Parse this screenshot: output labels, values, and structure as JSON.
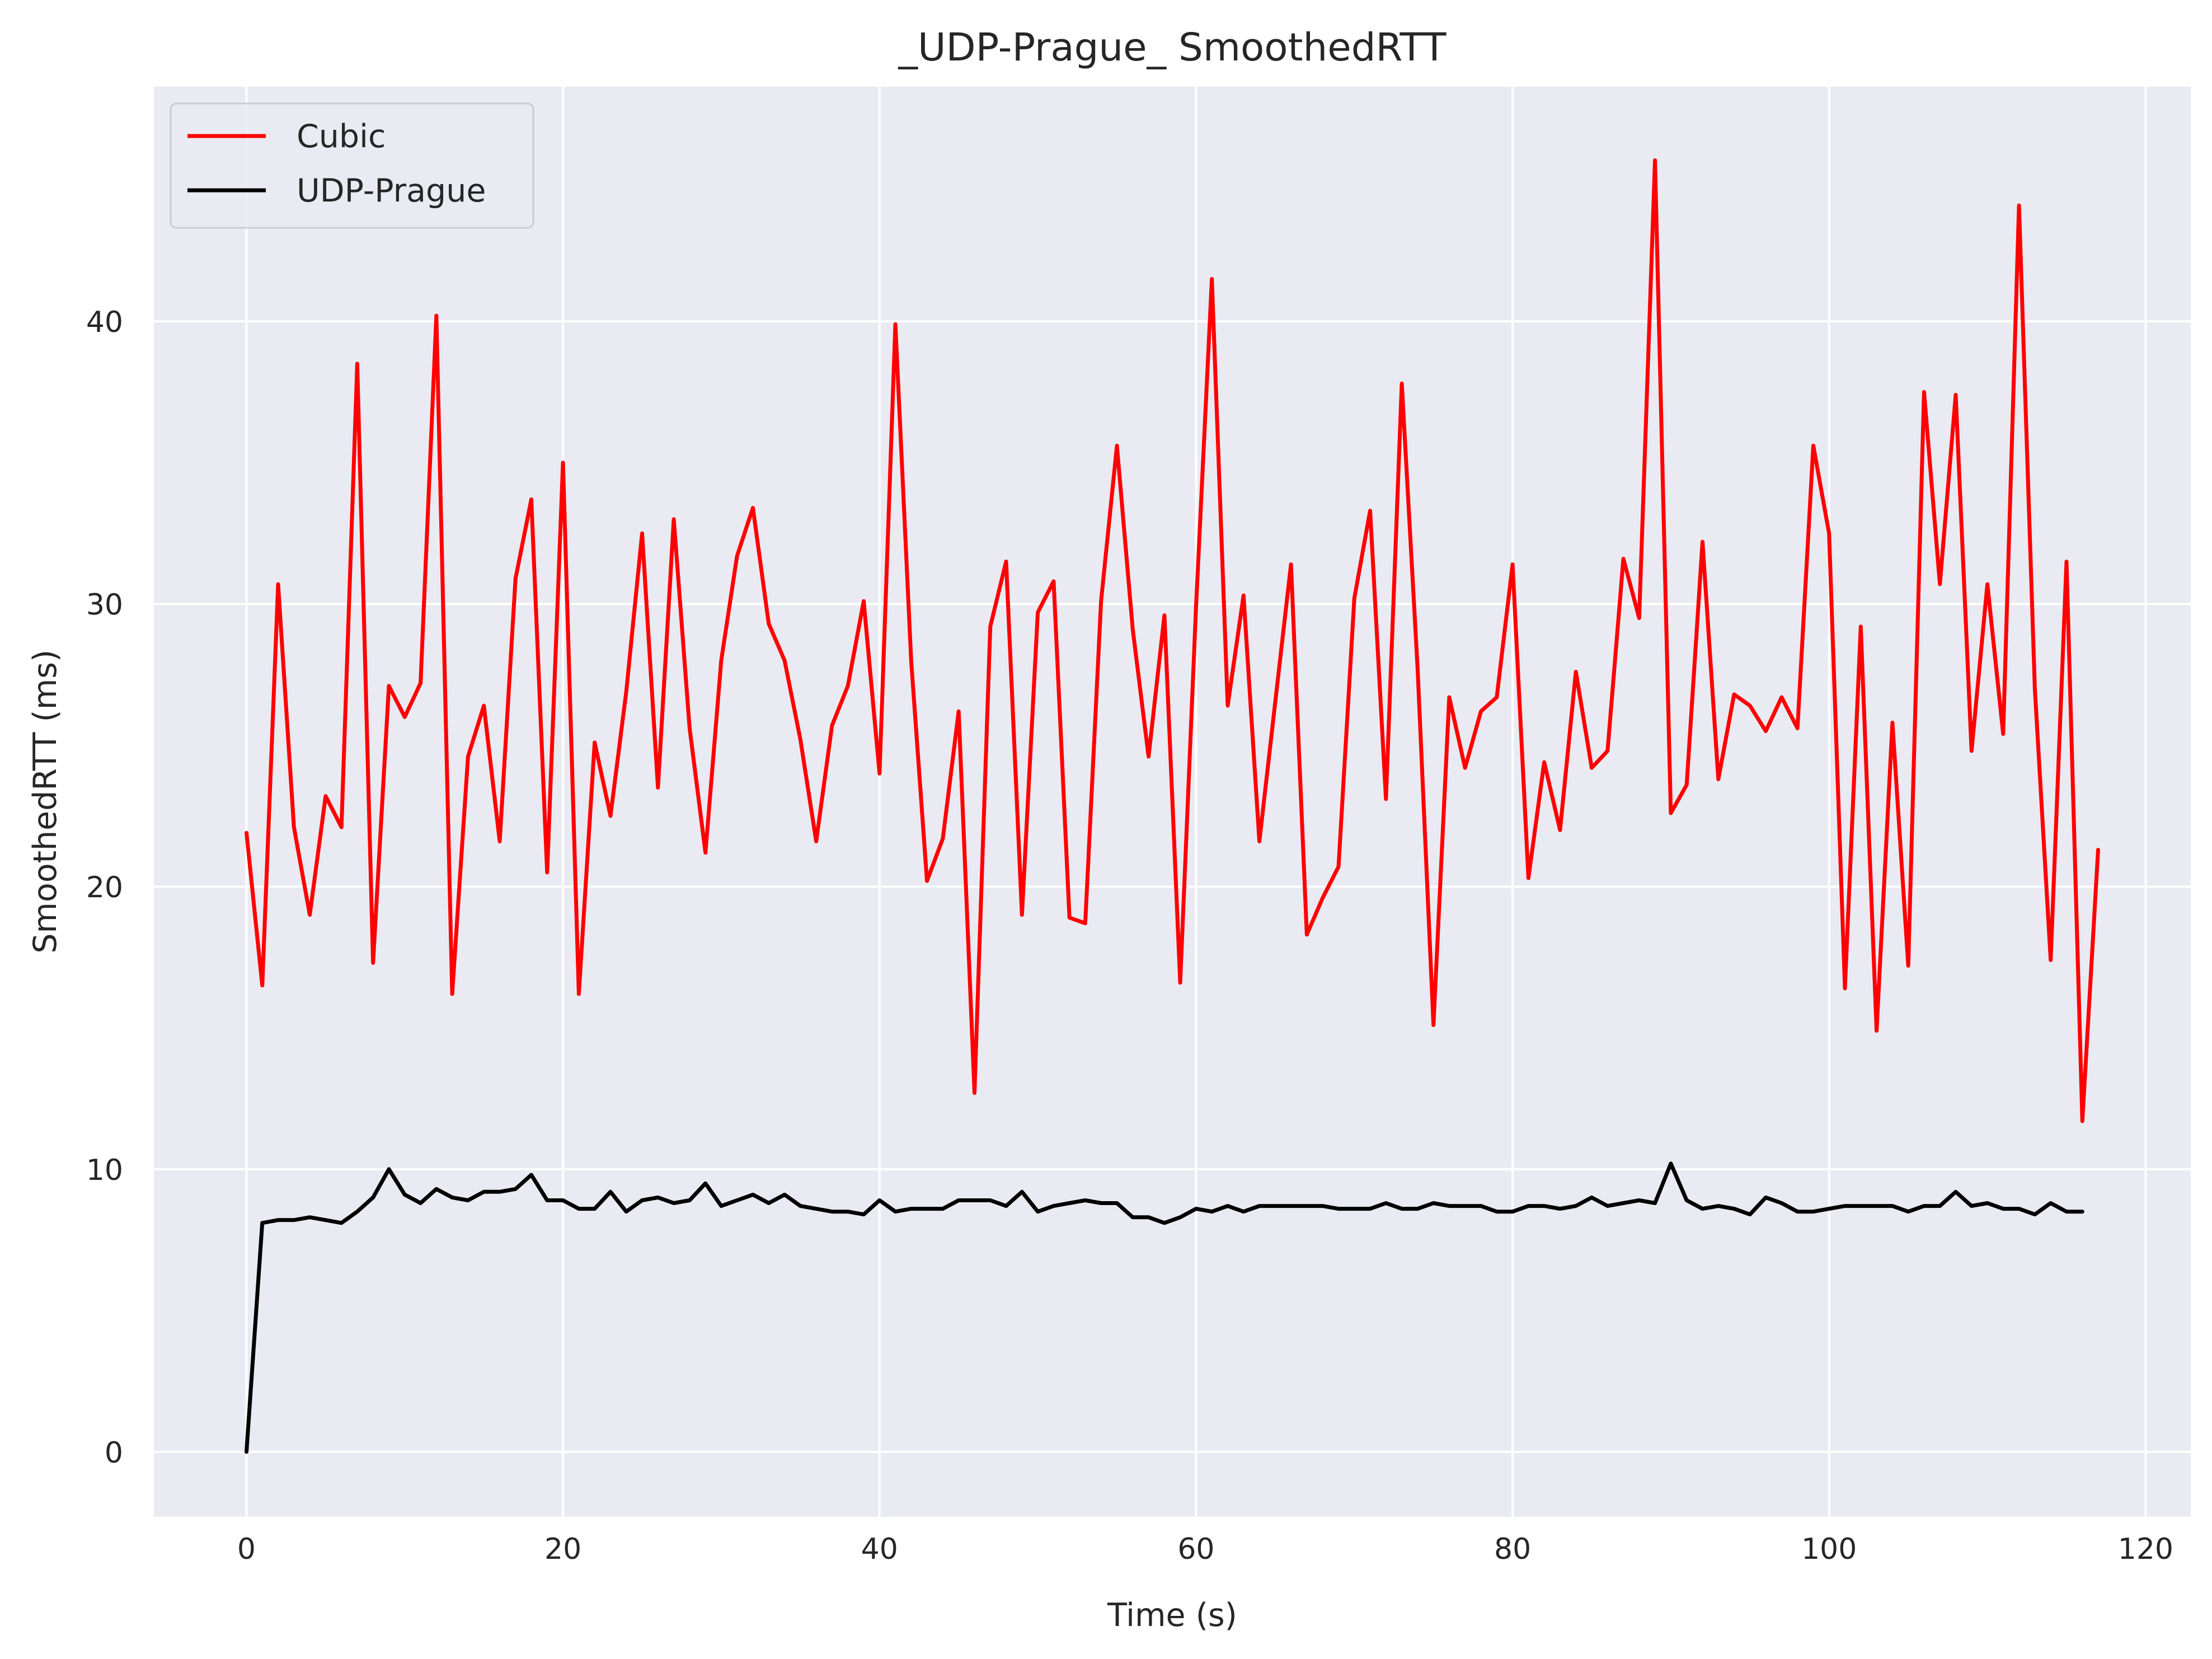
{
  "chart_data": {
    "type": "line",
    "title": "_UDP-Prague_ SmoothedRTT",
    "xlabel": "Time (s)",
    "ylabel": "SmoothedRTT (ms)",
    "xlim": [
      -5.85,
      122.85
    ],
    "ylim": [
      -2.3,
      48.3
    ],
    "xticks": [
      0,
      20,
      40,
      60,
      80,
      100,
      120
    ],
    "xtick_labels": [
      "0",
      "20",
      "40",
      "60",
      "80",
      "100",
      "120"
    ],
    "yticks": [
      0,
      10,
      20,
      30,
      40
    ],
    "ytick_labels": [
      "0",
      "10",
      "20",
      "30",
      "40"
    ],
    "grid": true,
    "legend_position": "top-left",
    "series": [
      {
        "name": "Cubic",
        "color": "#ff0000",
        "x_start": 0,
        "x_step": 1,
        "values": [
          21.9,
          16.5,
          30.7,
          22.1,
          19.0,
          23.2,
          22.1,
          38.5,
          17.3,
          27.1,
          26.0,
          27.2,
          40.2,
          16.2,
          24.6,
          26.4,
          21.6,
          30.9,
          33.7,
          20.5,
          35.0,
          16.2,
          25.1,
          22.5,
          26.9,
          32.5,
          23.5,
          33.0,
          25.6,
          21.2,
          28.0,
          31.7,
          33.4,
          29.3,
          28.0,
          25.2,
          21.6,
          25.7,
          27.1,
          30.1,
          24.0,
          39.9,
          28.0,
          20.2,
          21.7,
          26.2,
          12.7,
          29.2,
          31.5,
          19.0,
          29.7,
          30.8,
          18.9,
          18.7,
          30.1,
          35.6,
          29.1,
          24.6,
          29.6,
          16.6,
          29.9,
          41.5,
          26.4,
          30.3,
          21.6,
          26.5,
          31.4,
          18.3,
          19.6,
          20.7,
          30.2,
          33.3,
          23.1,
          37.8,
          27.7,
          15.1,
          26.7,
          24.2,
          26.2,
          26.7,
          31.4,
          20.3,
          24.4,
          22.0,
          27.6,
          24.2,
          24.8,
          31.6,
          29.5,
          45.7,
          22.6,
          23.6,
          32.2,
          23.8,
          26.8,
          26.4,
          25.5,
          26.7,
          25.6,
          35.6,
          32.5,
          16.4,
          29.2,
          14.9,
          25.8,
          17.2,
          37.5,
          30.7,
          37.4,
          24.8,
          30.7,
          25.4,
          44.1,
          27.0,
          17.4,
          31.5,
          11.7,
          21.3
        ]
      },
      {
        "name": "UDP-Prague",
        "color": "#000000",
        "x_start": 0,
        "x_step": 1,
        "values": [
          0.0,
          8.1,
          8.2,
          8.2,
          8.3,
          8.2,
          8.1,
          8.5,
          9.0,
          10.0,
          9.1,
          8.8,
          9.3,
          9.0,
          8.9,
          9.2,
          9.2,
          9.3,
          9.8,
          8.9,
          8.9,
          8.6,
          8.6,
          9.2,
          8.5,
          8.9,
          9.0,
          8.8,
          8.9,
          9.5,
          8.7,
          8.9,
          9.1,
          8.8,
          9.1,
          8.7,
          8.6,
          8.5,
          8.5,
          8.4,
          8.9,
          8.5,
          8.6,
          8.6,
          8.6,
          8.9,
          8.9,
          8.9,
          8.7,
          9.2,
          8.5,
          8.7,
          8.8,
          8.9,
          8.8,
          8.8,
          8.3,
          8.3,
          8.1,
          8.3,
          8.6,
          8.5,
          8.7,
          8.5,
          8.7,
          8.7,
          8.7,
          8.7,
          8.7,
          8.6,
          8.6,
          8.6,
          8.8,
          8.6,
          8.6,
          8.8,
          8.7,
          8.7,
          8.7,
          8.5,
          8.5,
          8.7,
          8.7,
          8.6,
          8.7,
          9.0,
          8.7,
          8.8,
          8.9,
          8.8,
          10.2,
          8.9,
          8.6,
          8.7,
          8.6,
          8.4,
          9.0,
          8.8,
          8.5,
          8.5,
          8.6,
          8.7,
          8.7,
          8.7,
          8.7,
          8.5,
          8.7,
          8.7,
          9.2,
          8.7,
          8.8,
          8.6,
          8.6,
          8.4,
          8.8,
          8.5,
          8.5
        ]
      }
    ]
  }
}
